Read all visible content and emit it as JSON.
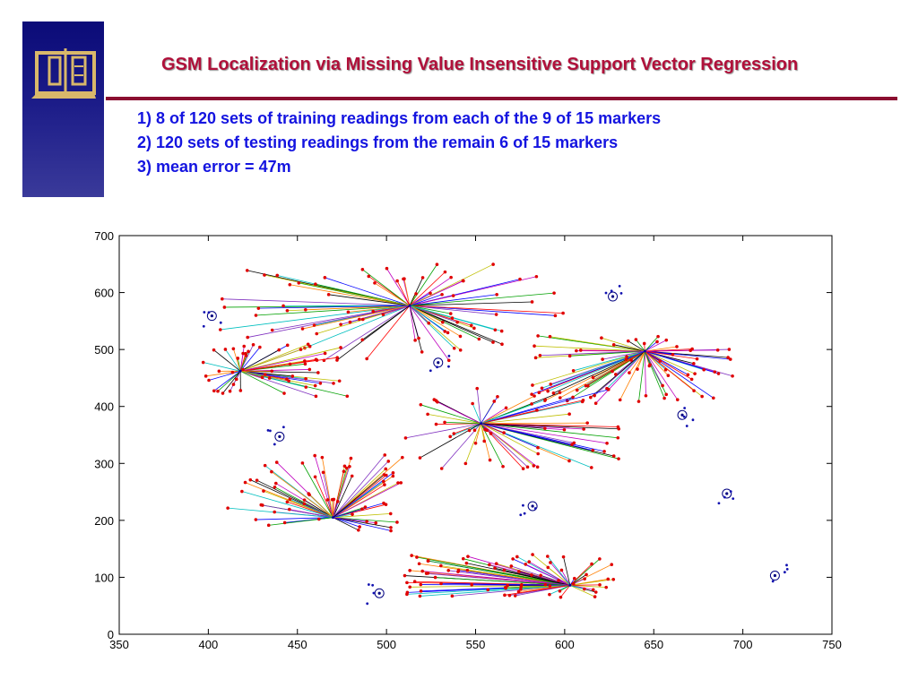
{
  "slide": {
    "title": "GSM Localization via Missing Value Insensitive Support Vector Regression",
    "bullets": [
      "1) 8 of 120 sets of training readings from each of the 9 of 15 markers",
      "2) 120 sets of testing readings from the remain 6 of 15 markers",
      "3) mean error = 47m"
    ],
    "colors": {
      "title": "#b0103a",
      "bullet": "#1414e0",
      "rule": "#8b0f30",
      "logo_bg": "#0b0b78",
      "logo_fg": "#d9b86a"
    }
  },
  "chart_data": {
    "type": "scatter",
    "title": "",
    "xlabel": "",
    "ylabel": "",
    "xlim": [
      350,
      750
    ],
    "ylim": [
      0,
      700
    ],
    "xticks": [
      350,
      400,
      450,
      500,
      550,
      600,
      650,
      700,
      750
    ],
    "yticks": [
      0,
      100,
      200,
      300,
      400,
      500,
      600,
      700
    ],
    "grid": false,
    "legend": "none",
    "centers": [
      {
        "x": 513,
        "y": 577,
        "cluster": {
          "xmin": 405,
          "xmax": 600,
          "ymin": 480,
          "ymax": 650,
          "n": 80
        }
      },
      {
        "x": 418,
        "y": 462,
        "cluster": {
          "xmin": 395,
          "xmax": 480,
          "ymin": 415,
          "ymax": 510,
          "n": 55
        }
      },
      {
        "x": 645,
        "y": 497,
        "cluster": {
          "xmin": 580,
          "xmax": 695,
          "ymin": 405,
          "ymax": 525,
          "n": 75
        }
      },
      {
        "x": 553,
        "y": 370,
        "cluster": {
          "xmin": 510,
          "xmax": 635,
          "ymin": 290,
          "ymax": 435,
          "n": 60
        }
      },
      {
        "x": 470,
        "y": 205,
        "cluster": {
          "xmin": 410,
          "xmax": 510,
          "ymin": 180,
          "ymax": 315,
          "n": 65
        }
      },
      {
        "x": 603,
        "y": 86,
        "cluster": {
          "xmin": 510,
          "xmax": 630,
          "ymin": 65,
          "ymax": 145,
          "n": 80
        }
      }
    ],
    "test_markers": [
      {
        "x": 402,
        "y": 559
      },
      {
        "x": 529,
        "y": 477
      },
      {
        "x": 627,
        "y": 593
      },
      {
        "x": 666,
        "y": 385
      },
      {
        "x": 440,
        "y": 347
      },
      {
        "x": 582,
        "y": 225
      },
      {
        "x": 691,
        "y": 247
      },
      {
        "x": 496,
        "y": 72
      },
      {
        "x": 718,
        "y": 103
      }
    ],
    "series_colors": [
      "#0000ff",
      "#00a000",
      "#ff0000",
      "#00bfbf",
      "#bf00bf",
      "#bfbf00",
      "#000000",
      "#7f2fbf",
      "#ff7f00"
    ]
  }
}
